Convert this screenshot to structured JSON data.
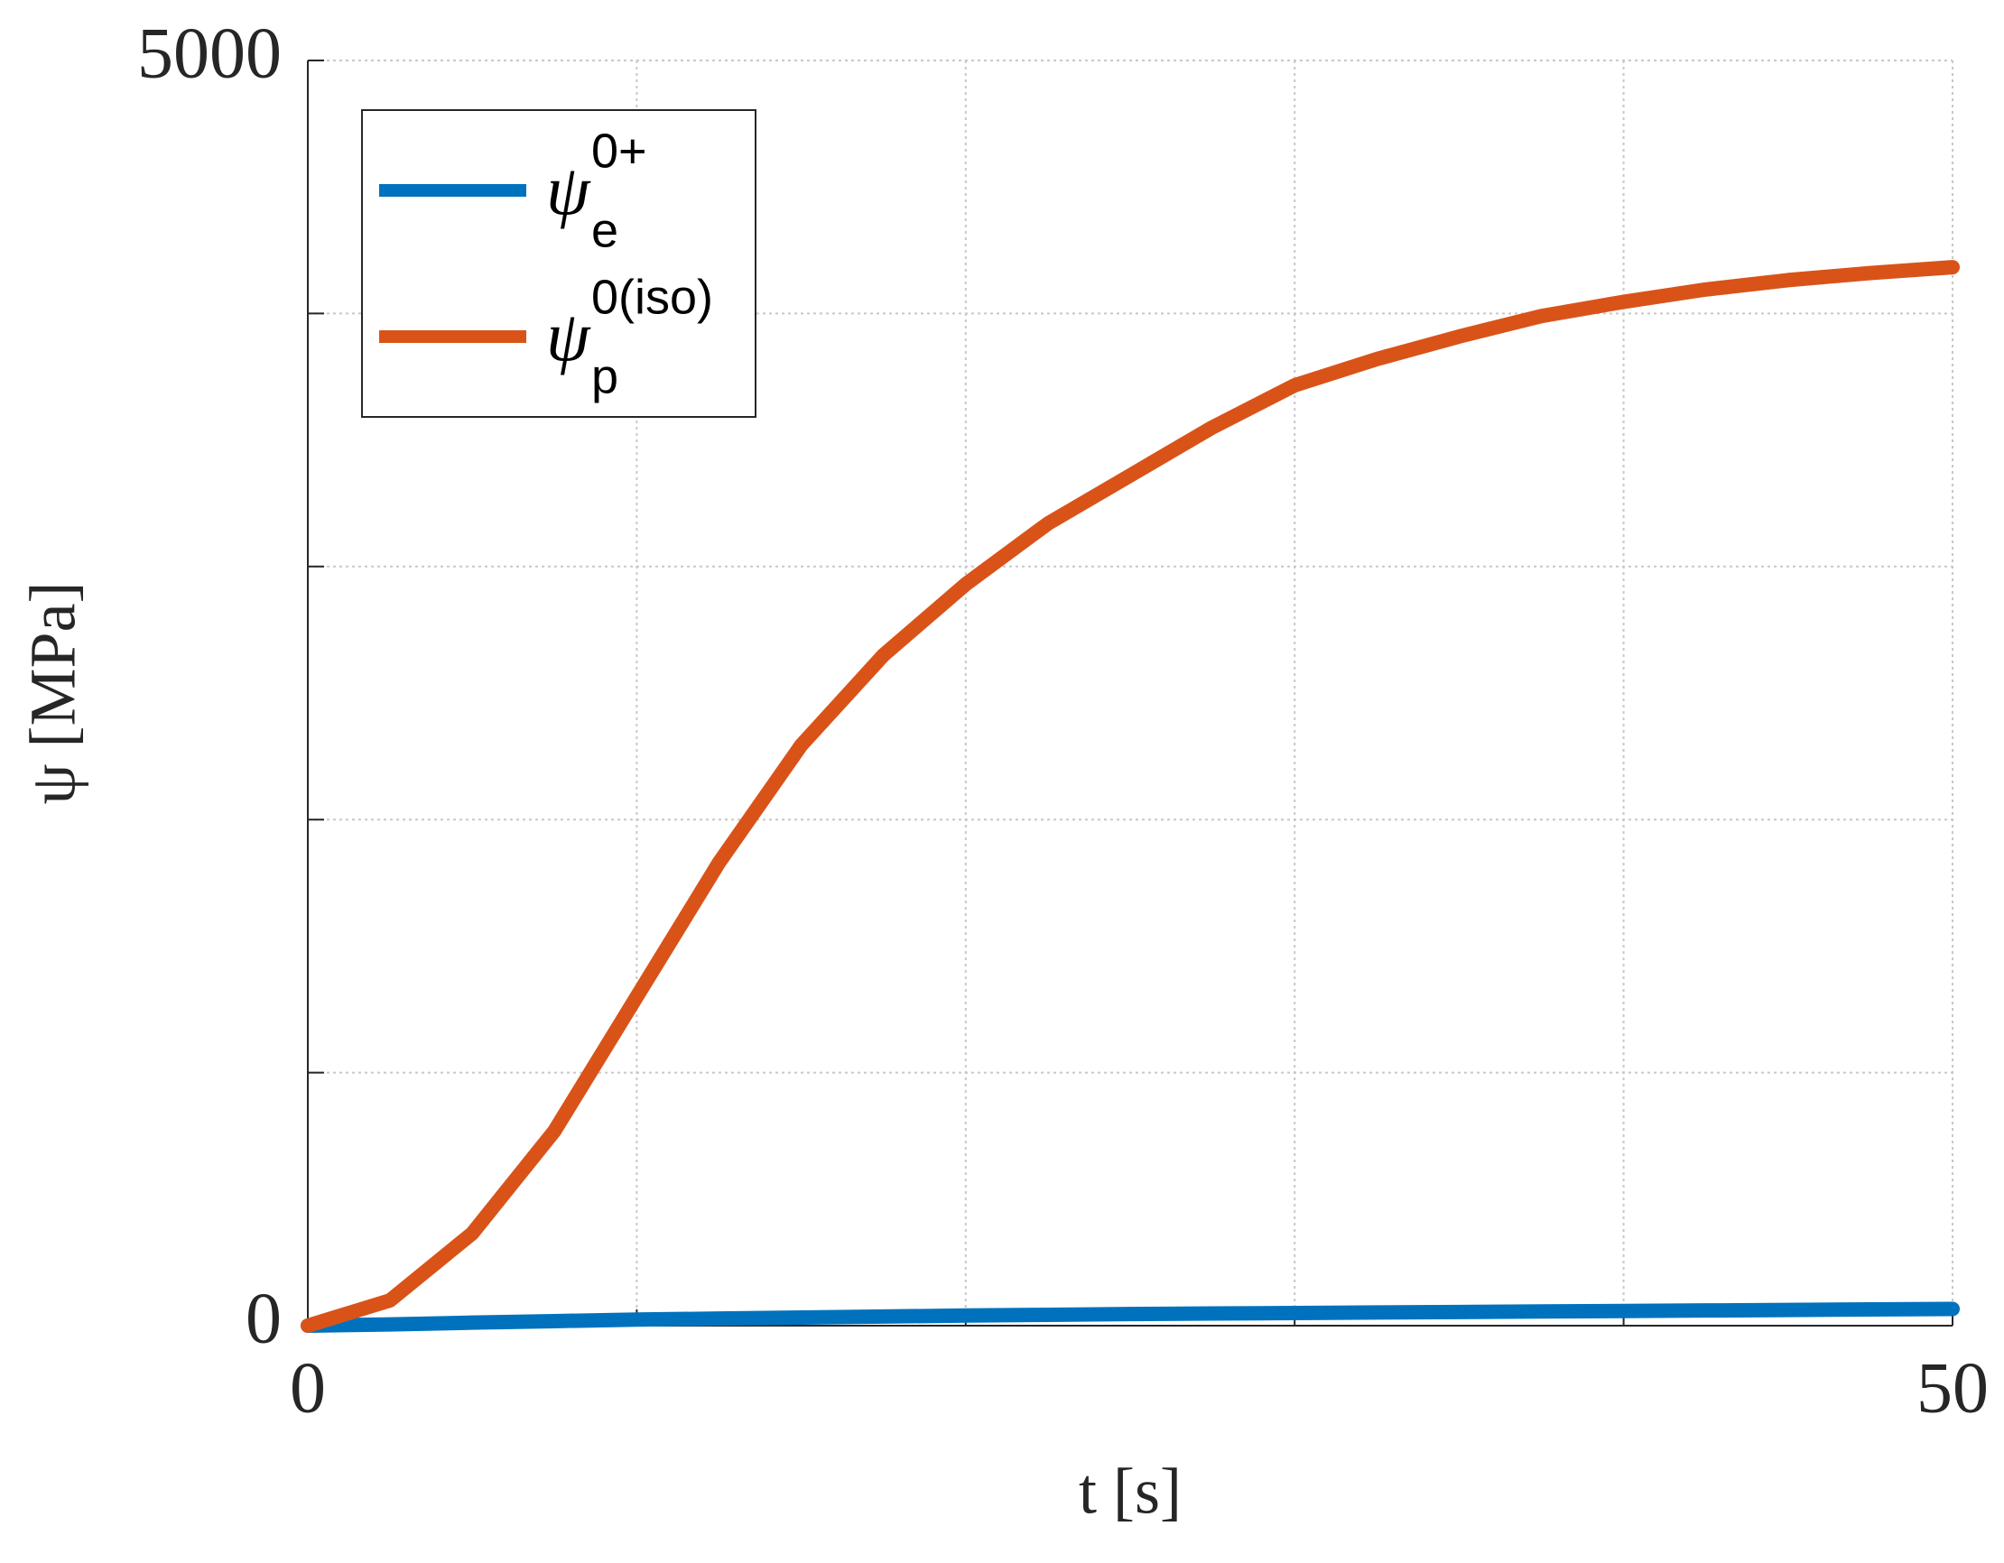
{
  "chart_data": {
    "type": "line",
    "xlabel": "t [s]",
    "ylabel": "ψ [MPa]",
    "x": [
      0,
      2.5,
      5,
      7.5,
      10,
      12.5,
      15,
      17.5,
      20,
      22.5,
      25,
      27.5,
      30,
      32.5,
      35,
      37.5,
      40,
      42.5,
      45,
      47.5,
      50
    ],
    "series": [
      {
        "name": "ψ",
        "name_sub": "e",
        "name_sup": "0+",
        "color": "#0072bd",
        "values": [
          0,
          5,
          12,
          18,
          24,
          28,
          32,
          36,
          40,
          43,
          46,
          48,
          50,
          52,
          54,
          56,
          58,
          60,
          62,
          64,
          66
        ]
      },
      {
        "name": "ψ",
        "name_sub": "p",
        "name_sup": "0(iso)",
        "color": "#d95319",
        "values": [
          0,
          100,
          365,
          770,
          1300,
          1830,
          2294,
          2650,
          2930,
          3170,
          3360,
          3550,
          3716,
          3820,
          3909,
          3990,
          4046,
          4095,
          4132,
          4160,
          4183
        ]
      }
    ],
    "xlim": [
      0,
      50
    ],
    "xticks": [
      0,
      {
        "value": 10,
        "label": null
      },
      {
        "value": 20,
        "label": null
      },
      {
        "value": 30,
        "label": null
      },
      {
        "value": 40,
        "label": null
      },
      50
    ],
    "ylim": [
      0,
      5000
    ],
    "yticks": [
      0,
      {
        "value": 1000,
        "label": null
      },
      {
        "value": 2000,
        "label": null
      },
      {
        "value": 3000,
        "label": null
      },
      {
        "value": 4000,
        "label": null
      },
      5000
    ],
    "grid": true,
    "legend": "upper left"
  }
}
